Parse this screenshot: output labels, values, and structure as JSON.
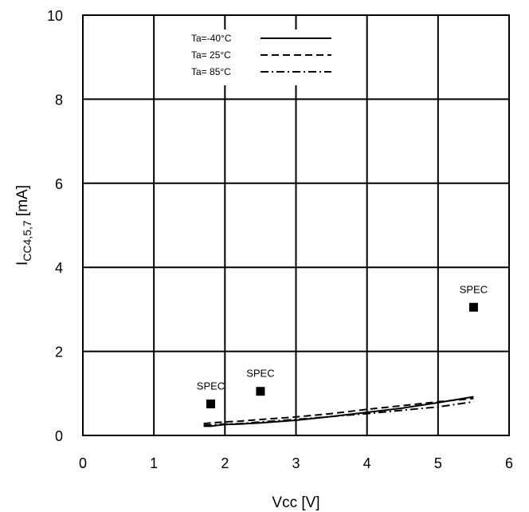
{
  "chart_data": {
    "type": "line",
    "title": "",
    "xlabel": "Vcc [V]",
    "ylabel": {
      "prefix": "I",
      "subscript": "CC4,5,7",
      "suffix": " [mA]"
    },
    "xlim": [
      0,
      6
    ],
    "ylim": [
      0,
      10
    ],
    "xticks": [
      0,
      1,
      2,
      3,
      4,
      5,
      6
    ],
    "yticks": [
      0,
      2,
      4,
      6,
      8,
      10
    ],
    "grid": true,
    "legend_position": "top-center",
    "series": [
      {
        "name": "Ta=-40°C",
        "style": "solid",
        "x": [
          1.7,
          1.8,
          2.0,
          2.2,
          2.5,
          3.0,
          3.5,
          4.0,
          4.5,
          5.0,
          5.5
        ],
        "y": [
          0.22,
          0.22,
          0.26,
          0.27,
          0.3,
          0.36,
          0.45,
          0.55,
          0.65,
          0.78,
          0.92
        ]
      },
      {
        "name": "Ta= 25°C",
        "style": "dashed",
        "x": [
          1.7,
          1.8,
          2.0,
          2.2,
          2.5,
          3.0,
          3.5,
          4.0,
          4.5,
          5.0,
          5.5
        ],
        "y": [
          0.28,
          0.3,
          0.32,
          0.34,
          0.38,
          0.44,
          0.52,
          0.62,
          0.71,
          0.8,
          0.88
        ]
      },
      {
        "name": "Ta= 85°C",
        "style": "dashdot",
        "x": [
          1.7,
          1.8,
          2.0,
          2.2,
          2.5,
          3.0,
          3.5,
          4.0,
          4.5,
          5.0,
          5.5
        ],
        "y": [
          0.24,
          0.25,
          0.27,
          0.28,
          0.32,
          0.38,
          0.45,
          0.52,
          0.6,
          0.68,
          0.8
        ]
      }
    ],
    "spec_points": [
      {
        "label": "SPEC",
        "x": 1.8,
        "y": 0.75
      },
      {
        "label": "SPEC",
        "x": 2.5,
        "y": 1.05
      },
      {
        "label": "SPEC",
        "x": 5.5,
        "y": 3.05
      }
    ]
  }
}
